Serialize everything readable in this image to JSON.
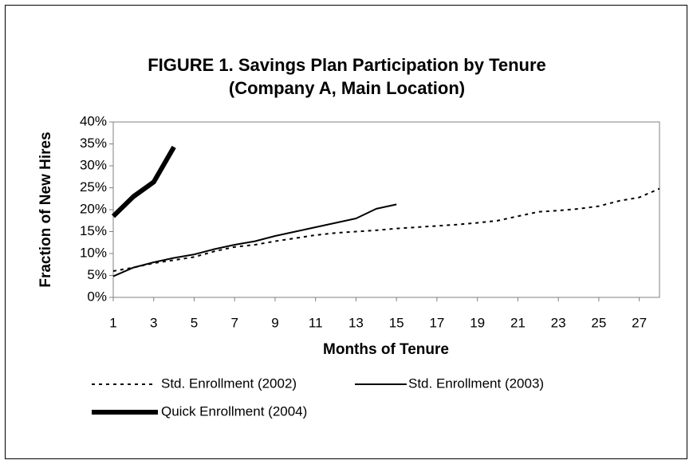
{
  "chart_data": {
    "type": "line",
    "title": [
      "FIGURE 1. Savings Plan Participation by Tenure",
      "(Company A, Main Location)"
    ],
    "xlabel": "Months of Tenure",
    "ylabel": "Fraction of New Hires",
    "x": [
      1,
      2,
      3,
      4,
      5,
      6,
      7,
      8,
      9,
      10,
      11,
      12,
      13,
      14,
      15,
      16,
      17,
      18,
      19,
      20,
      21,
      22,
      23,
      24,
      25,
      26,
      27,
      28
    ],
    "xlim": [
      1,
      28
    ],
    "xticks": [
      1,
      3,
      5,
      7,
      9,
      11,
      13,
      15,
      17,
      19,
      21,
      23,
      25,
      27
    ],
    "ylim": [
      0,
      40
    ],
    "yticks": [
      {
        "value": 0,
        "label": "0%"
      },
      {
        "value": 5,
        "label": "5%"
      },
      {
        "value": 10,
        "label": "10%"
      },
      {
        "value": 15,
        "label": "15%"
      },
      {
        "value": 20,
        "label": "20%"
      },
      {
        "value": 25,
        "label": "25%"
      },
      {
        "value": 30,
        "label": "30%"
      },
      {
        "value": 35,
        "label": "35%"
      },
      {
        "value": 40,
        "label": "40%"
      }
    ],
    "grid": false,
    "legend": "bottom",
    "series": [
      {
        "name": "Std. Enrollment (2002)",
        "color": "#000000",
        "line_style": "dotted",
        "values": [
          6,
          6.8,
          7.8,
          8.5,
          9.2,
          10.5,
          11.5,
          12,
          12.8,
          13.5,
          14.2,
          14.7,
          15,
          15.3,
          15.7,
          16,
          16.3,
          16.6,
          17,
          17.5,
          18.5,
          19.5,
          19.8,
          20.2,
          20.8,
          22,
          22.8,
          24.8
        ]
      },
      {
        "name": "Std. Enrollment (2003)",
        "color": "#000000",
        "line_style": "solid",
        "values": [
          4.8,
          6.8,
          8,
          9,
          9.8,
          11,
          12,
          12.8,
          14,
          15,
          16,
          17,
          18,
          20.2,
          21.2,
          null,
          null,
          null,
          null,
          null,
          null,
          null,
          null,
          null,
          null,
          null,
          null,
          null
        ]
      },
      {
        "name": "Quick Enrollment (2004)",
        "color": "#000000",
        "line_style": "thick",
        "values": [
          18.5,
          23,
          26.3,
          34.3,
          null,
          null,
          null,
          null,
          null,
          null,
          null,
          null,
          null,
          null,
          null,
          null,
          null,
          null,
          null,
          null,
          null,
          null,
          null,
          null,
          null,
          null,
          null,
          null
        ]
      }
    ]
  }
}
